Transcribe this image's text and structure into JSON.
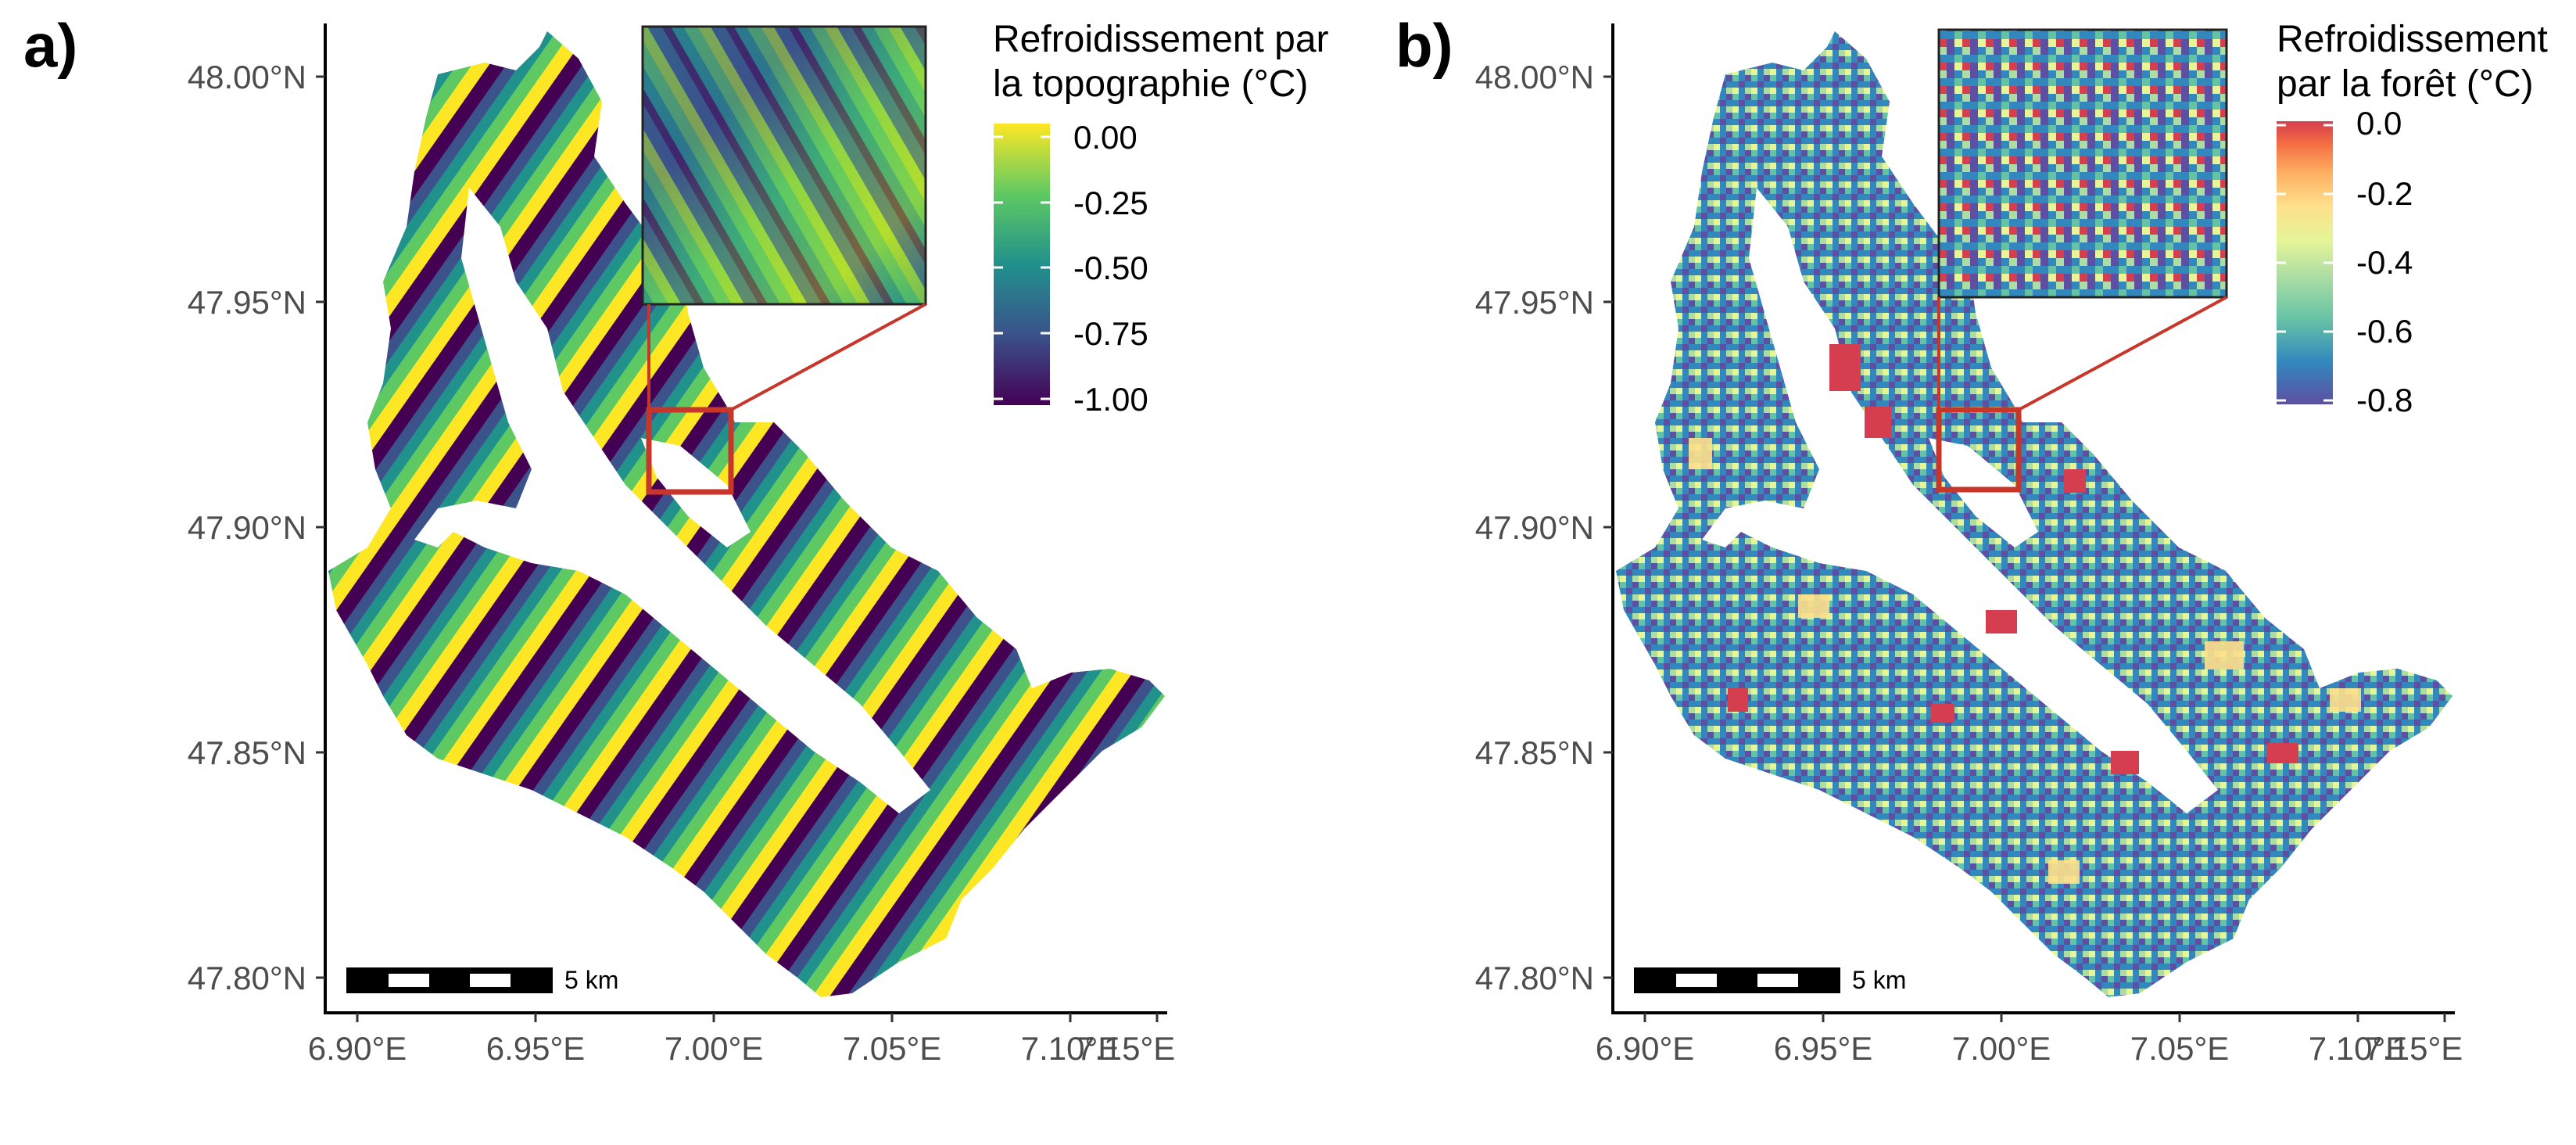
{
  "panels": [
    {
      "id": "a",
      "label": "a)",
      "legend": {
        "title_line1": "Refroidissement par",
        "title_line2": "la topographie (°C)",
        "labels": [
          "0.00",
          "-0.25",
          "-0.50",
          "-0.75",
          "-1.00"
        ],
        "colors": [
          "#440154",
          "#3b528b",
          "#21918c",
          "#5ec962",
          "#fde725"
        ]
      },
      "scale_bar_label": "5 km"
    },
    {
      "id": "b",
      "label": "b)",
      "legend": {
        "title_line1": "Refroidissement",
        "title_line2": "par la forêt (°C)",
        "labels": [
          "0.0",
          "-0.2",
          "-0.4",
          "-0.6",
          "-0.8"
        ],
        "colors": [
          "#5e4fa2",
          "#3288bd",
          "#66c2a5",
          "#abdda4",
          "#e6f598",
          "#fee08b",
          "#fdae61",
          "#f46d43",
          "#d53e4f"
        ]
      },
      "scale_bar_label": "5 km"
    }
  ],
  "axes": {
    "y_ticks": [
      "48.00°N",
      "47.95°N",
      "47.90°N",
      "47.85°N",
      "47.80°N"
    ],
    "x_ticks": [
      "6.90°E",
      "6.95°E",
      "7.00°E",
      "7.05°E",
      "7.10°E",
      "7.15°E"
    ]
  },
  "colors": {
    "inset_box": "#c8352a",
    "axis": "#000000"
  }
}
